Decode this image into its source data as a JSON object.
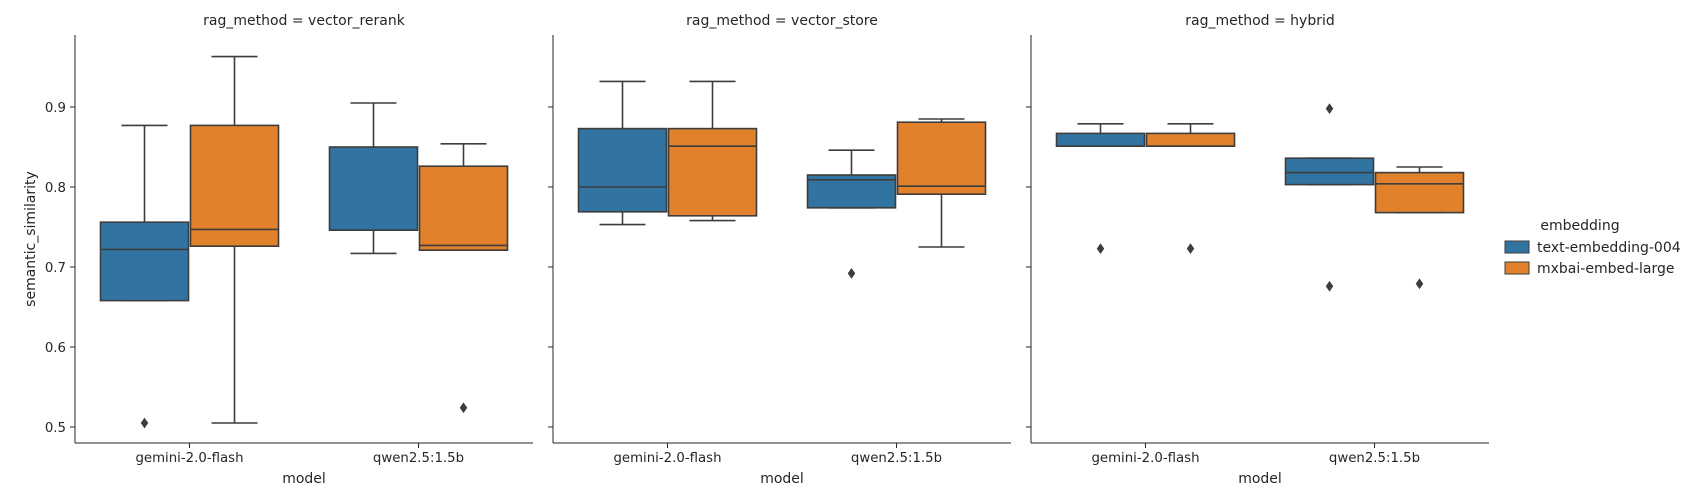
{
  "chart_data": {
    "type": "box",
    "ylabel": "semantic_similarity",
    "xlabel": "model",
    "ylim": [
      0.48,
      0.99
    ],
    "yticks": [
      "0.5",
      "0.6",
      "0.7",
      "0.8",
      "0.9"
    ],
    "grid": false,
    "legend": {
      "title": "embedding",
      "placement": "right",
      "entries": [
        {
          "name": "text-embedding-004",
          "color": "#3274a1"
        },
        {
          "name": "mxbai-embed-large",
          "color": "#e1812c"
        }
      ]
    },
    "categories": [
      "gemini-2.0-flash",
      "qwen2.5:1.5b"
    ],
    "panels": [
      {
        "title": "rag_method = vector_rerank",
        "boxes": [
          {
            "category": "gemini-2.0-flash",
            "series": "text-embedding-004",
            "whisker_low": 0.658,
            "q1": 0.658,
            "median": 0.722,
            "q3": 0.756,
            "whisker_high": 0.877,
            "outliers": [
              0.505
            ]
          },
          {
            "category": "gemini-2.0-flash",
            "series": "mxbai-embed-large",
            "whisker_low": 0.505,
            "q1": 0.726,
            "median": 0.747,
            "q3": 0.877,
            "whisker_high": 0.963,
            "outliers": []
          },
          {
            "category": "qwen2.5:1.5b",
            "series": "text-embedding-004",
            "whisker_low": 0.717,
            "q1": 0.746,
            "median": 0.746,
            "q3": 0.85,
            "whisker_high": 0.905,
            "outliers": []
          },
          {
            "category": "qwen2.5:1.5b",
            "series": "mxbai-embed-large",
            "whisker_low": 0.721,
            "q1": 0.721,
            "median": 0.727,
            "q3": 0.826,
            "whisker_high": 0.854,
            "outliers": [
              0.524
            ]
          }
        ]
      },
      {
        "title": "rag_method = vector_store",
        "boxes": [
          {
            "category": "gemini-2.0-flash",
            "series": "text-embedding-004",
            "whisker_low": 0.753,
            "q1": 0.769,
            "median": 0.8,
            "q3": 0.873,
            "whisker_high": 0.932,
            "outliers": []
          },
          {
            "category": "gemini-2.0-flash",
            "series": "mxbai-embed-large",
            "whisker_low": 0.758,
            "q1": 0.764,
            "median": 0.851,
            "q3": 0.873,
            "whisker_high": 0.932,
            "outliers": []
          },
          {
            "category": "qwen2.5:1.5b",
            "series": "text-embedding-004",
            "whisker_low": 0.774,
            "q1": 0.774,
            "median": 0.809,
            "q3": 0.815,
            "whisker_high": 0.846,
            "outliers": [
              0.692
            ]
          },
          {
            "category": "qwen2.5:1.5b",
            "series": "mxbai-embed-large",
            "whisker_low": 0.725,
            "q1": 0.791,
            "median": 0.801,
            "q3": 0.881,
            "whisker_high": 0.885,
            "outliers": []
          }
        ]
      },
      {
        "title": "rag_method = hybrid",
        "boxes": [
          {
            "category": "gemini-2.0-flash",
            "series": "text-embedding-004",
            "whisker_low": 0.851,
            "q1": 0.851,
            "median": 0.851,
            "q3": 0.867,
            "whisker_high": 0.879,
            "outliers": [
              0.723
            ]
          },
          {
            "category": "gemini-2.0-flash",
            "series": "mxbai-embed-large",
            "whisker_low": 0.851,
            "q1": 0.851,
            "median": 0.851,
            "q3": 0.867,
            "whisker_high": 0.879,
            "outliers": [
              0.723
            ]
          },
          {
            "category": "qwen2.5:1.5b",
            "series": "text-embedding-004",
            "whisker_low": 0.803,
            "q1": 0.803,
            "median": 0.818,
            "q3": 0.836,
            "whisker_high": 0.836,
            "outliers": [
              0.898,
              0.676
            ]
          },
          {
            "category": "qwen2.5:1.5b",
            "series": "mxbai-embed-large",
            "whisker_low": 0.768,
            "q1": 0.768,
            "median": 0.804,
            "q3": 0.818,
            "whisker_high": 0.825,
            "outliers": [
              0.679
            ]
          }
        ]
      }
    ]
  }
}
